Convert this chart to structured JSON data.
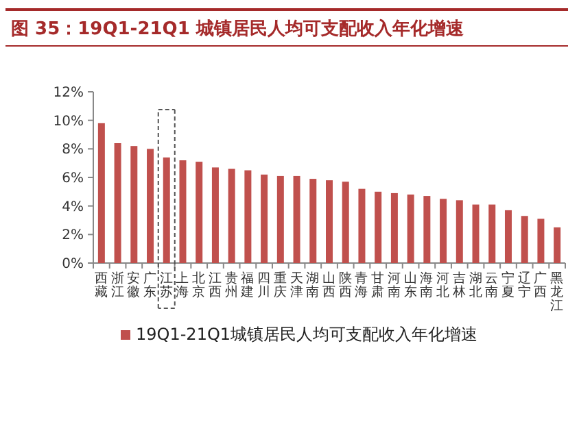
{
  "chart_data": {
    "type": "bar",
    "title": "图 35：19Q1-21Q1 城镇居民人均可支配收入年化增速",
    "categories": [
      "西藏",
      "浙江",
      "安徽",
      "广东",
      "江苏",
      "上海",
      "北京",
      "江西",
      "贵州",
      "福建",
      "四川",
      "重庆",
      "天津",
      "湖南",
      "山西",
      "陕西",
      "青海",
      "甘肃",
      "河南",
      "山东",
      "海南",
      "河北",
      "吉林",
      "湖北",
      "云南",
      "宁夏",
      "辽宁",
      "广西",
      "黑龙江"
    ],
    "series": [
      {
        "name": "19Q1-21Q1城镇居民人均可支配收入年化增速",
        "color": "#c0504d",
        "values": [
          9.8,
          8.4,
          8.2,
          8.0,
          7.4,
          7.2,
          7.1,
          6.7,
          6.6,
          6.5,
          6.2,
          6.1,
          6.1,
          5.9,
          5.8,
          5.7,
          5.2,
          5.0,
          4.9,
          4.8,
          4.7,
          4.5,
          4.4,
          4.1,
          4.1,
          3.7,
          3.3,
          3.1,
          2.5
        ]
      }
    ],
    "ylim": [
      0,
      12
    ],
    "yticks": [
      {
        "value": 0,
        "label": "0%"
      },
      {
        "value": 2,
        "label": "2%"
      },
      {
        "value": 4,
        "label": "4%"
      },
      {
        "value": 6,
        "label": "6%"
      },
      {
        "value": 8,
        "label": "8%"
      },
      {
        "value": 10,
        "label": "10%"
      },
      {
        "value": 12,
        "label": "12%"
      }
    ],
    "grid": false,
    "legend": "bottom"
  }
}
